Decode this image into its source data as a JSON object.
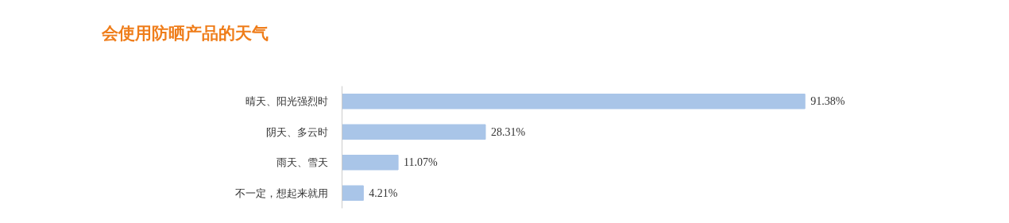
{
  "chart_data": {
    "type": "bar",
    "orientation": "horizontal",
    "title": "会使用防晒产品的天气",
    "categories": [
      "晴天、阳光强烈时",
      "阴天、多云时",
      "雨天、雪天",
      "不一定，想起来就用"
    ],
    "values": [
      91.38,
      28.31,
      11.07,
      4.21
    ],
    "value_labels": [
      "91.38%",
      "28.31%",
      "11.07%",
      "4.21%"
    ],
    "color": "#a9c5e8",
    "tick_labels": "y",
    "grid": false
  }
}
